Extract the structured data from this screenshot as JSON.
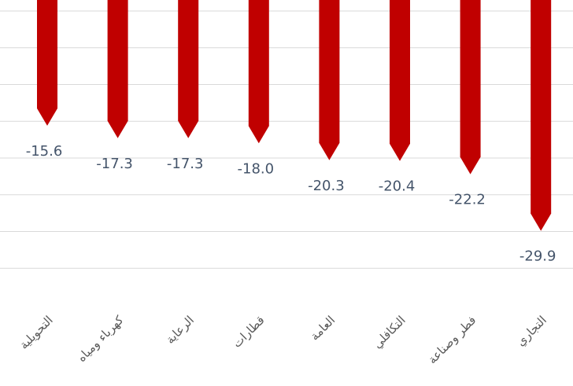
{
  "chart_data": {
    "type": "bar",
    "orientation": "vertical",
    "bar_shape": "arrow-down",
    "categories": [
      "التحويلية",
      "كهرباء ومياه",
      "الرعاية",
      "قطارات",
      "العامة",
      "التكافلي",
      "فطر وصناعة",
      "التجاري"
    ],
    "values": [
      -15.6,
      -17.3,
      -17.3,
      -18.0,
      -20.3,
      -20.4,
      -22.2,
      -29.9
    ],
    "value_labels": [
      "-15.6",
      "-17.3",
      "-17.3",
      "-18.0",
      "-20.3",
      "-20.4",
      "-22.2",
      "-29.9"
    ],
    "ylim": [
      -35,
      0
    ],
    "grid": true,
    "legend": "none",
    "colors": {
      "bar": "#c00000",
      "label": "#44546a",
      "grid": "#d9d9d9",
      "category": "#595959"
    }
  }
}
